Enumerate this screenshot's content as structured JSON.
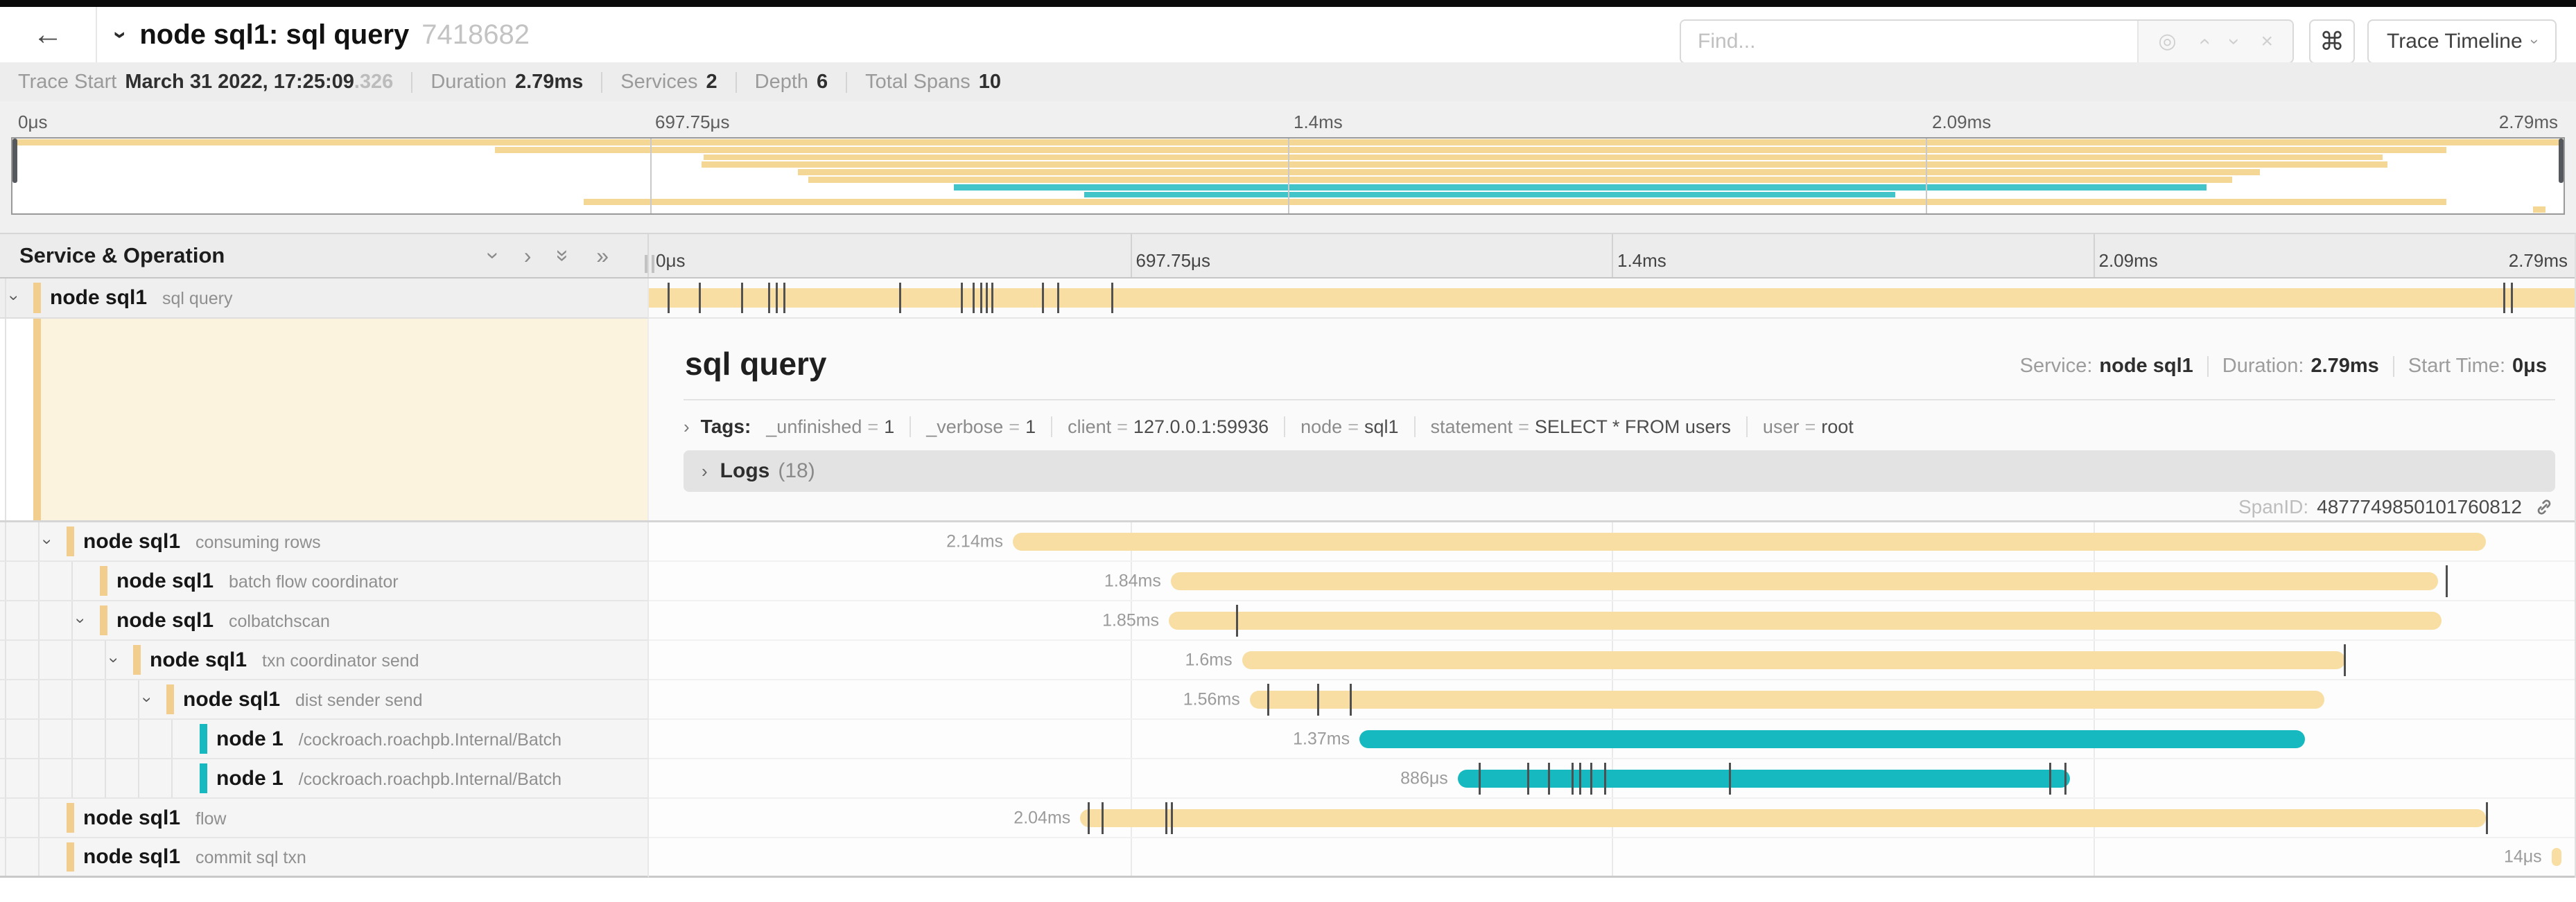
{
  "colors": {
    "tan_bar": "#F8DEA2",
    "teal_bar": "#16B9BF",
    "tan_accent": "#F2CE8E",
    "teal_accent": "#16B9BF",
    "tan_mini": "#F5D795",
    "teal_mini": "#43C4C8"
  },
  "icons": {
    "back": "←",
    "chevron": "›",
    "double_chevron": "»",
    "target": "◎",
    "close": "×",
    "command": "⌘"
  },
  "header": {
    "title": "node sql1: sql query",
    "trace_id": "7418682",
    "find_placeholder": "Find...",
    "view_button": "Trace Timeline"
  },
  "summary": {
    "trace_start_label": "Trace Start",
    "trace_start_value": "March 31 2022, 17:25:09",
    "trace_start_frac": ".326",
    "items": [
      {
        "label": "Duration",
        "value": "2.79ms"
      },
      {
        "label": "Services",
        "value": "2"
      },
      {
        "label": "Depth",
        "value": "6"
      },
      {
        "label": "Total Spans",
        "value": "10"
      }
    ]
  },
  "axis_ticks": [
    "0μs",
    "697.75μs",
    "1.4ms",
    "2.09ms",
    "2.79ms"
  ],
  "tree_header": "Service & Operation",
  "pinned_span": {
    "service": "node sql1",
    "operation": "sql query",
    "depth": 0,
    "chevron": true,
    "color": "tan",
    "duration": "",
    "start": 0,
    "width": 100,
    "ticks": [
      0.97,
      2.6,
      4.8,
      6.2,
      6.6,
      7.0,
      13.0,
      16.2,
      16.8,
      17.2,
      17.5,
      17.8,
      20.4,
      21.2,
      24.0,
      96.3,
      96.7
    ]
  },
  "spans": [
    {
      "service": "node sql1",
      "operation": "consuming rows",
      "depth": 1,
      "chevron": true,
      "color": "tan",
      "duration": "2.14ms",
      "start": 18.9,
      "width": 76.5,
      "ticks": []
    },
    {
      "service": "node sql1",
      "operation": "batch flow coordinator",
      "depth": 2,
      "chevron": false,
      "color": "tan",
      "duration": "1.84ms",
      "start": 27.1,
      "width": 65.8,
      "ticks": [
        93.3
      ]
    },
    {
      "service": "node sql1",
      "operation": "colbatchscan",
      "depth": 2,
      "chevron": true,
      "color": "tan",
      "duration": "1.85ms",
      "start": 27.0,
      "width": 66.1,
      "ticks": [
        30.5
      ]
    },
    {
      "service": "node sql1",
      "operation": "txn coordinator send",
      "depth": 3,
      "chevron": true,
      "color": "tan",
      "duration": "1.6ms",
      "start": 30.8,
      "width": 57.3,
      "ticks": [
        88.0
      ]
    },
    {
      "service": "node sql1",
      "operation": "dist sender send",
      "depth": 4,
      "chevron": true,
      "color": "tan",
      "duration": "1.56ms",
      "start": 31.2,
      "width": 55.8,
      "ticks": [
        32.1,
        34.7,
        36.4
      ]
    },
    {
      "service": "node 1",
      "operation": "/cockroach.roachpb.Internal/Batch",
      "depth": 5,
      "chevron": false,
      "color": "teal",
      "duration": "1.37ms",
      "start": 36.9,
      "width": 49.1,
      "ticks": []
    },
    {
      "service": "node 1",
      "operation": "/cockroach.roachpb.Internal/Batch",
      "depth": 5,
      "chevron": false,
      "color": "teal",
      "duration": "886μs",
      "start": 42.0,
      "width": 31.8,
      "ticks": [
        43.1,
        45.6,
        46.7,
        47.9,
        48.3,
        48.9,
        49.6,
        56.1,
        72.7,
        73.5
      ]
    },
    {
      "service": "node sql1",
      "operation": "flow",
      "depth": 1,
      "chevron": false,
      "color": "tan",
      "duration": "2.04ms",
      "start": 22.4,
      "width": 73.0,
      "ticks": [
        22.8,
        23.5,
        26.8,
        27.1,
        95.4
      ]
    },
    {
      "service": "node sql1",
      "operation": "commit sql txn",
      "depth": 1,
      "chevron": false,
      "color": "tan",
      "duration": "14μs",
      "start": 98.8,
      "width": 0.5,
      "ticks": []
    }
  ],
  "detail": {
    "title": "sql query",
    "meta": [
      {
        "label": "Service:",
        "value": "node sql1"
      },
      {
        "label": "Duration:",
        "value": "2.79ms"
      },
      {
        "label": "Start Time:",
        "value": "0μs"
      }
    ],
    "tags_label": "Tags:",
    "tags": [
      {
        "key": "_unfinished",
        "value": "1"
      },
      {
        "key": "_verbose",
        "value": "1"
      },
      {
        "key": "client",
        "value": "127.0.0.1:59936"
      },
      {
        "key": "node",
        "value": "sql1"
      },
      {
        "key": "statement",
        "value": "SELECT * FROM users"
      },
      {
        "key": "user",
        "value": "root"
      }
    ],
    "logs_label": "Logs",
    "logs_count": "(18)",
    "span_id_label": "SpanID:",
    "span_id": "4877749850101760812"
  }
}
